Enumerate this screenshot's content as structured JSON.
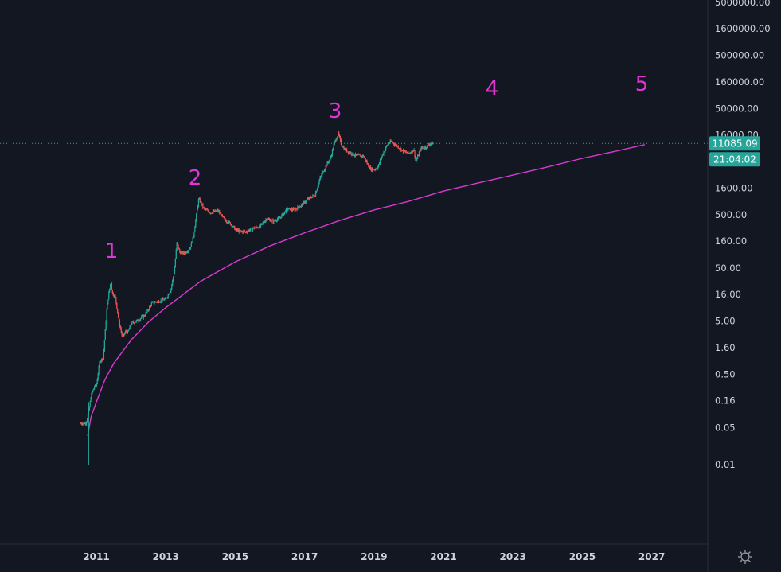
{
  "chart_data": {
    "type": "candlestick",
    "scale": "log",
    "grid": false,
    "colors": {
      "background": "#131722",
      "up": "#26a69a",
      "down": "#ef5350",
      "curve": "#d63ad0",
      "annotation": "#e135d6",
      "price_line": "#26a69a",
      "badge": "#26a69a",
      "axis_text": "#d1d4dc",
      "divider": "#2a2e39"
    },
    "y_ticks": [
      "5000000.00",
      "1600000.00",
      "500000.00",
      "160000.00",
      "50000.00",
      "16000.00",
      "1600.00",
      "500.00",
      "160.00",
      "50.00",
      "16.00",
      "5.00",
      "1.60",
      "0.50",
      "0.16",
      "0.05",
      "0.01"
    ],
    "x_ticks": [
      "2011",
      "2013",
      "2015",
      "2017",
      "2019",
      "2021",
      "2023",
      "2025",
      "2027"
    ],
    "last_price": "11085.09",
    "countdown": "21:04:02",
    "annotations": [
      "1",
      "2",
      "3",
      "4",
      "5"
    ],
    "series": [
      {
        "name": "price",
        "x": [
          2010.55,
          2010.7,
          2010.78,
          2010.85,
          2010.95,
          2011.0,
          2011.1,
          2011.2,
          2011.3,
          2011.35,
          2011.42,
          2011.46,
          2011.55,
          2011.65,
          2011.75,
          2011.85,
          2011.9,
          2012.0,
          2012.2,
          2012.4,
          2012.6,
          2012.8,
          2013.0,
          2013.15,
          2013.25,
          2013.32,
          2013.4,
          2013.55,
          2013.7,
          2013.8,
          2013.9,
          2013.95,
          2014.1,
          2014.3,
          2014.5,
          2014.7,
          2014.85,
          2015.0,
          2015.1,
          2015.3,
          2015.5,
          2015.7,
          2015.9,
          2016.1,
          2016.3,
          2016.5,
          2016.7,
          2016.9,
          2017.1,
          2017.3,
          2017.45,
          2017.6,
          2017.75,
          2017.85,
          2017.97,
          2018.05,
          2018.15,
          2018.3,
          2018.5,
          2018.7,
          2018.85,
          2018.95,
          2019.1,
          2019.25,
          2019.4,
          2019.5,
          2019.7,
          2019.85,
          2020.0,
          2020.15,
          2020.2,
          2020.35,
          2020.5,
          2020.6,
          2020.7
        ],
        "values": [
          0.06,
          0.06,
          0.1,
          0.2,
          0.3,
          0.3,
          0.9,
          1.0,
          8.0,
          15,
          29,
          17,
          14,
          5.0,
          2.5,
          3.2,
          3.0,
          4.5,
          5.2,
          6.5,
          11,
          12,
          13,
          20,
          45,
          150,
          100,
          95,
          120,
          200,
          600,
          1000,
          650,
          550,
          600,
          400,
          350,
          270,
          250,
          240,
          280,
          300,
          420,
          380,
          450,
          650,
          620,
          750,
          1000,
          1200,
          2500,
          4000,
          6000,
          11000,
          17000,
          11000,
          8500,
          7500,
          6500,
          6400,
          4000,
          3500,
          3800,
          7000,
          11000,
          12000,
          9500,
          7800,
          7200,
          8500,
          5000,
          9000,
          9500,
          11000,
          11085.09
        ]
      },
      {
        "name": "curve",
        "x": [
          2010.75,
          2010.85,
          2011.0,
          2011.25,
          2011.5,
          2012.0,
          2012.5,
          2013.0,
          2014.0,
          2015.0,
          2016.0,
          2017.0,
          2018.0,
          2019.0,
          2020.0,
          2021.0,
          2022.0,
          2023.0,
          2024.0,
          2025.0,
          2026.0,
          2026.8
        ],
        "values": [
          0.035,
          0.08,
          0.15,
          0.4,
          0.8,
          2.2,
          4.8,
          9.0,
          28,
          65,
          130,
          230,
          390,
          620,
          900,
          1400,
          2000,
          2800,
          4000,
          5800,
          8000,
          10500
        ]
      }
    ]
  }
}
